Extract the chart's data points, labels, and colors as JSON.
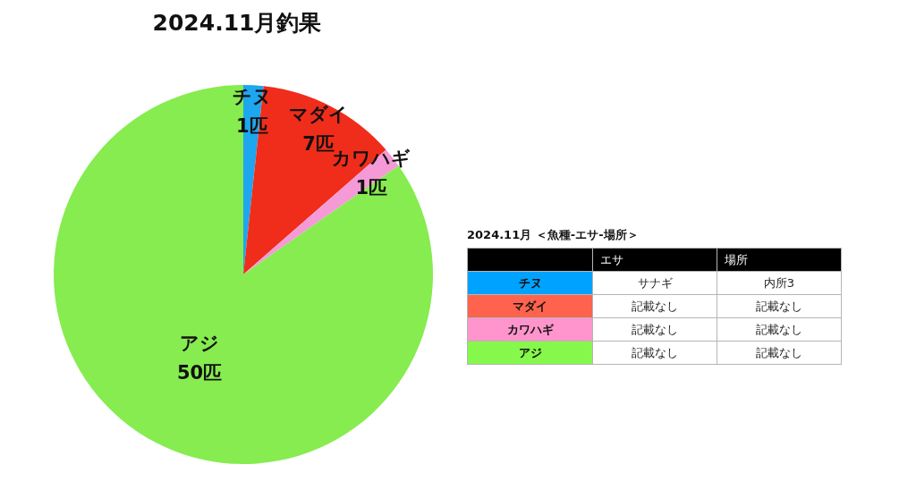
{
  "chart_data": [
    {
      "type": "pie",
      "title": "2024.11月釣果",
      "categories": [
        "チヌ",
        "マダイ",
        "カワハギ",
        "アジ"
      ],
      "values": [
        1,
        7,
        1,
        50
      ],
      "value_labels": [
        "1匹",
        "7匹",
        "1匹",
        "50匹"
      ],
      "colors": [
        "#1ea6ef",
        "#ef2d1a",
        "#f59ad6",
        "#86ec4f"
      ],
      "legend": false
    },
    {
      "type": "other",
      "title": "2024.11月 ＜魚種-エサ-場所＞",
      "categories": [
        "チヌ",
        "マダイ",
        "カワハギ",
        "アジ"
      ],
      "colors": [
        "#00a2ff",
        "#ff634d",
        "#ff95cc",
        "#86f84b"
      ],
      "series": [
        {
          "name": "エサ",
          "values": [
            null,
            null,
            null,
            null
          ],
          "value_labels": [
            "サナギ",
            "記載なし",
            "記載なし",
            "記載なし"
          ]
        },
        {
          "name": "場所",
          "values": [
            null,
            null,
            null,
            null
          ],
          "value_labels": [
            "内所3",
            "記載なし",
            "記載なし",
            "記載なし"
          ]
        }
      ]
    }
  ]
}
